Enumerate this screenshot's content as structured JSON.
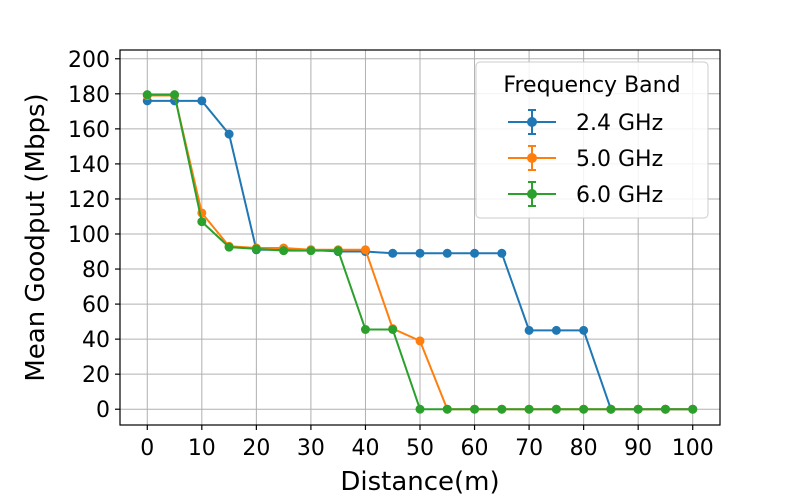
{
  "chart_data": {
    "type": "line",
    "title": "",
    "xlabel": "Distance(m)",
    "ylabel": "Mean Goodput (Mbps)",
    "xlim": [
      -5,
      105
    ],
    "ylim": [
      -9,
      205
    ],
    "xticks": [
      0,
      10,
      20,
      30,
      40,
      50,
      60,
      70,
      80,
      90,
      100
    ],
    "yticks": [
      0,
      20,
      40,
      60,
      80,
      100,
      120,
      140,
      160,
      180,
      200
    ],
    "grid": true,
    "legend": {
      "title": "Frequency Band",
      "placement": "top-right"
    },
    "x": [
      0,
      5,
      10,
      15,
      20,
      25,
      30,
      35,
      40,
      45,
      50,
      55,
      60,
      65,
      70,
      75,
      80,
      85,
      90,
      95,
      100
    ],
    "series": [
      {
        "name": "2.4 GHz",
        "color": "#1f77b4",
        "values": [
          176,
          176,
          176,
          157,
          91,
          91,
          91,
          90,
          90,
          89,
          89,
          89,
          89,
          89,
          45,
          45,
          45,
          0,
          0,
          0,
          0
        ]
      },
      {
        "name": "5.0 GHz",
        "color": "#ff7f0e",
        "values": [
          179,
          179,
          112,
          93,
          92,
          92,
          91,
          91,
          91,
          46,
          39,
          0,
          0,
          0,
          0,
          0,
          0,
          0,
          0,
          0,
          0
        ]
      },
      {
        "name": "6.0 GHz",
        "color": "#2ca02c",
        "values": [
          179.5,
          179.5,
          107,
          92.5,
          91.5,
          90.5,
          90.5,
          90.5,
          45.5,
          45.5,
          0,
          0,
          0,
          0,
          0,
          0,
          0,
          0,
          0,
          0,
          0
        ]
      }
    ]
  }
}
